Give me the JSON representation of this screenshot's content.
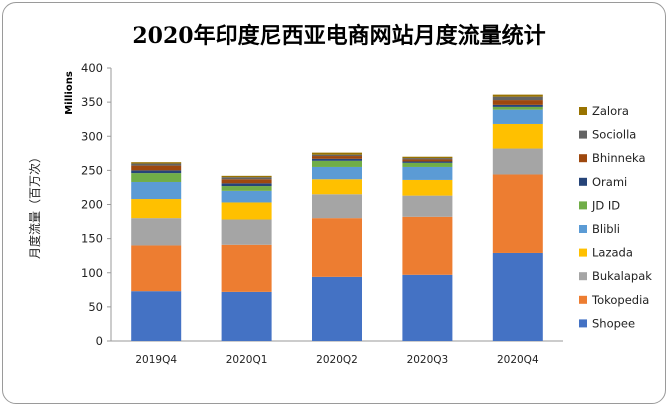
{
  "chart_data": {
    "type": "bar",
    "stacked": true,
    "title": "2020年印度尼西亚电商网站月度流量统计",
    "unit_label": "Millions",
    "ylabel": "月度流量（百万次）",
    "xlabel": "",
    "ylim": [
      0,
      400
    ],
    "yticks": [
      0,
      50,
      100,
      150,
      200,
      250,
      300,
      350,
      400
    ],
    "grid": false,
    "legend_position": "right",
    "categories": [
      "2019Q4",
      "2020Q1",
      "2020Q2",
      "2020Q3",
      "2020Q4"
    ],
    "series": [
      {
        "name": "Shopee",
        "color": "#4472C4",
        "values": [
          73,
          72,
          94,
          97,
          129
        ]
      },
      {
        "name": "Tokopedia",
        "color": "#ED7D31",
        "values": [
          67,
          69,
          86,
          85,
          115
        ]
      },
      {
        "name": "Bukalapak",
        "color": "#A5A5A5",
        "values": [
          40,
          37,
          35,
          31,
          38
        ]
      },
      {
        "name": "Lazada",
        "color": "#FFC000",
        "values": [
          28,
          25,
          22,
          23,
          36
        ]
      },
      {
        "name": "Blibli",
        "color": "#5B9BD5",
        "values": [
          25,
          17,
          18,
          19,
          21
        ]
      },
      {
        "name": "JD ID",
        "color": "#70AD47",
        "values": [
          13,
          7,
          9,
          6,
          4
        ]
      },
      {
        "name": "Orami",
        "color": "#264478",
        "values": [
          4,
          4,
          3,
          2,
          3
        ]
      },
      {
        "name": "Bhinneka",
        "color": "#9E480E",
        "values": [
          7,
          6,
          4,
          3,
          7
        ]
      },
      {
        "name": "Sociolla",
        "color": "#636363",
        "values": [
          3,
          3,
          2,
          2,
          5
        ]
      },
      {
        "name": "Zalora",
        "color": "#997300",
        "values": [
          2,
          2,
          3,
          2,
          3
        ]
      }
    ]
  }
}
